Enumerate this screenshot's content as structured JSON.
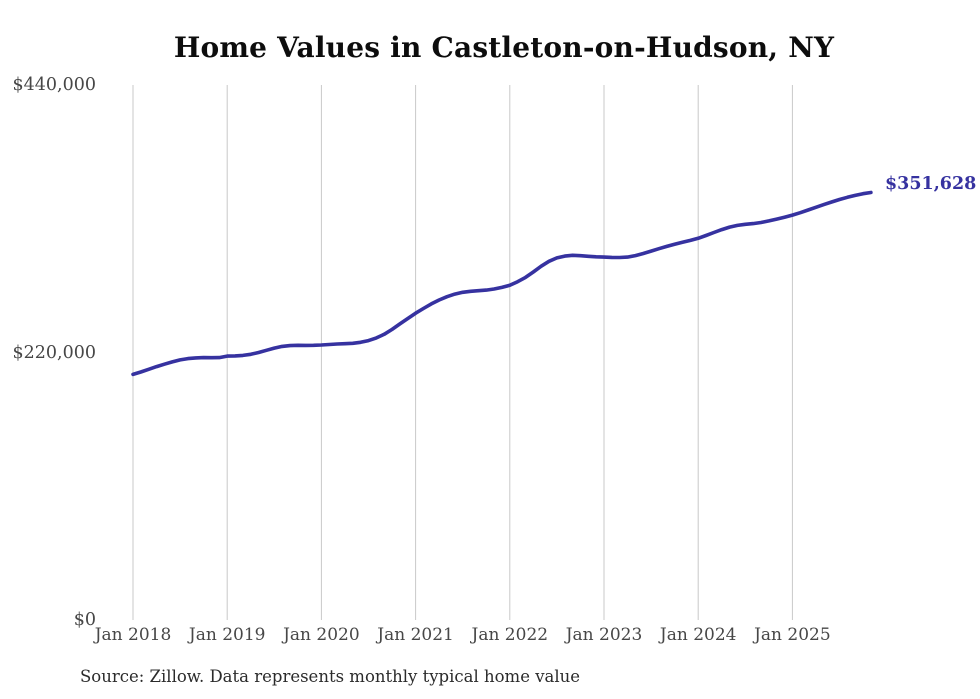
{
  "title": "Home Values in Castleton-on-Hudson, NY",
  "end_label": "$351,628",
  "source_note": "Source: Zillow. Data represents monthly typical home value",
  "colors": {
    "line": "#3632a0",
    "annotation": "#3632a0",
    "grid": "#c9c9c9",
    "title": "#0d0d0d",
    "axis_label": "#474747",
    "background": "#ffffff"
  },
  "chart_data": {
    "type": "line",
    "title": "Home Values in Castleton-on-Hudson, NY",
    "series_name": "Monthly typical home value",
    "xlabel": "",
    "ylabel": "",
    "ylim": [
      0,
      440000
    ],
    "grid": "vertical-only",
    "legend": "none",
    "annotation": "$351,628",
    "y_ticks": [
      {
        "label": "$0",
        "value": 0
      },
      {
        "label": "$220,000",
        "value": 220000
      },
      {
        "label": "$440,000",
        "value": 440000
      }
    ],
    "x_tick_labels": [
      "Jan 2018",
      "Jan 2019",
      "Jan 2020",
      "Jan 2021",
      "Jan 2022",
      "Jan 2023",
      "Jan 2024",
      "Jan 2025"
    ],
    "x_months": [
      "2018-01",
      "2018-02",
      "2018-03",
      "2018-04",
      "2018-05",
      "2018-06",
      "2018-07",
      "2018-08",
      "2018-09",
      "2018-10",
      "2018-11",
      "2018-12",
      "2019-01",
      "2019-02",
      "2019-03",
      "2019-04",
      "2019-05",
      "2019-06",
      "2019-07",
      "2019-08",
      "2019-09",
      "2019-10",
      "2019-11",
      "2019-12",
      "2020-01",
      "2020-02",
      "2020-03",
      "2020-04",
      "2020-05",
      "2020-06",
      "2020-07",
      "2020-08",
      "2020-09",
      "2020-10",
      "2020-11",
      "2020-12",
      "2021-01",
      "2021-02",
      "2021-03",
      "2021-04",
      "2021-05",
      "2021-06",
      "2021-07",
      "2021-08",
      "2021-09",
      "2021-10",
      "2021-11",
      "2021-12",
      "2022-01",
      "2022-02",
      "2022-03",
      "2022-04",
      "2022-05",
      "2022-06",
      "2022-07",
      "2022-08",
      "2022-09",
      "2022-10",
      "2022-11",
      "2022-12",
      "2023-01",
      "2023-02",
      "2023-03",
      "2023-04",
      "2023-05",
      "2023-06",
      "2023-07",
      "2023-08",
      "2023-09",
      "2023-10",
      "2023-11",
      "2023-12",
      "2024-01",
      "2024-02",
      "2024-03",
      "2024-04",
      "2024-05",
      "2024-06",
      "2024-07",
      "2024-08",
      "2024-09",
      "2024-10",
      "2024-11",
      "2024-12",
      "2025-01",
      "2025-02",
      "2025-03",
      "2025-04",
      "2025-05",
      "2025-06",
      "2025-07",
      "2025-08",
      "2025-09",
      "2025-10",
      "2025-11"
    ],
    "values": [
      202000,
      204000,
      206200,
      208400,
      210400,
      212300,
      213900,
      215000,
      215600,
      215800,
      215700,
      215800,
      217000,
      217200,
      217600,
      218500,
      220000,
      221800,
      223600,
      225000,
      225700,
      225900,
      225800,
      225900,
      226200,
      226600,
      227000,
      227200,
      227600,
      228400,
      229800,
      232000,
      235000,
      239000,
      243500,
      248000,
      252300,
      256200,
      260000,
      263200,
      265900,
      268000,
      269500,
      270300,
      270800,
      271300,
      272200,
      273500,
      275300,
      278200,
      281800,
      286200,
      291000,
      295000,
      297800,
      299300,
      299900,
      299600,
      299100,
      298700,
      298500,
      298200,
      298100,
      298500,
      299700,
      301400,
      303400,
      305400,
      307300,
      309000,
      310600,
      312200,
      313900,
      316200,
      318700,
      321100,
      323100,
      324500,
      325400,
      326000,
      326900,
      328200,
      329700,
      331300,
      333000,
      335000,
      337200,
      339400,
      341600,
      343800,
      345800,
      347600,
      349200,
      350600,
      351628
    ],
    "latest_value": 351628
  }
}
